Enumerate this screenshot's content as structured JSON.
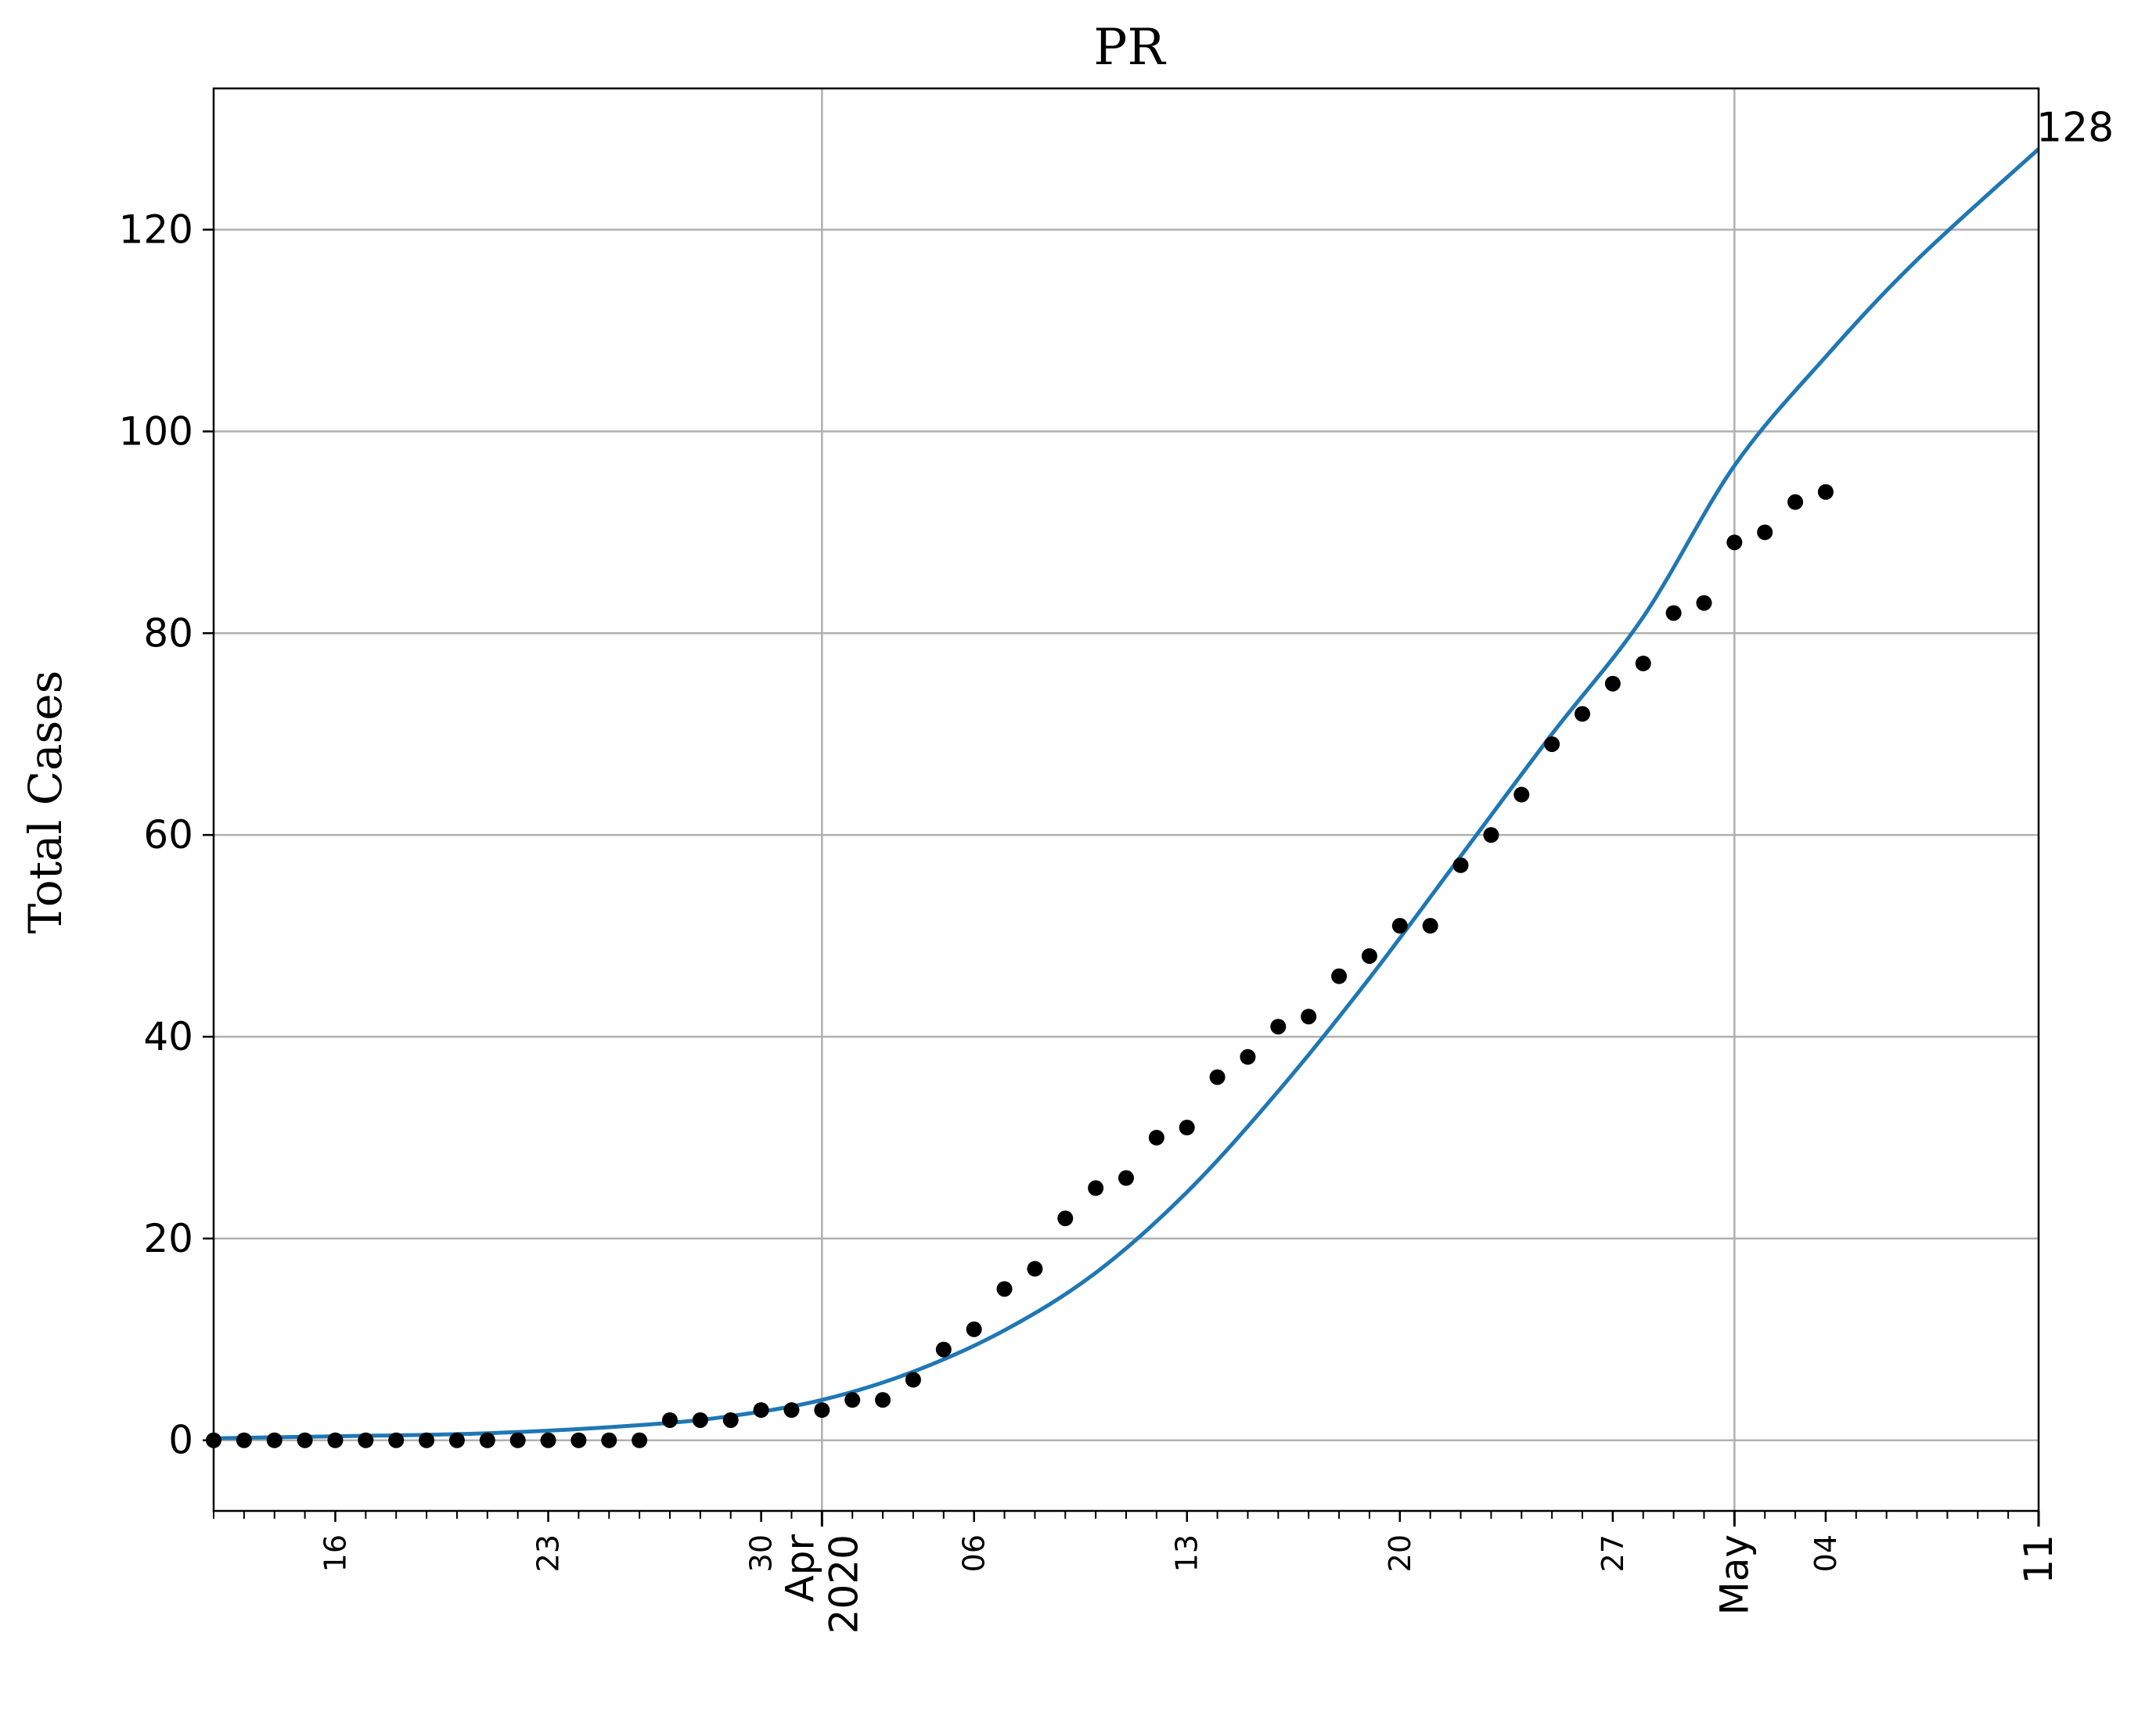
{
  "chart_data": {
    "type": "scatter",
    "title": "PR",
    "ylabel": "Total Cases",
    "xlabel": "",
    "ylim": [
      -7,
      134
    ],
    "xlim": [
      "2020-03-12",
      "2020-05-11"
    ],
    "grid": true,
    "y_ticks": [
      0,
      20,
      40,
      60,
      80,
      100,
      120
    ],
    "x_minor_tick_labels": [
      {
        "date": "2020-03-16",
        "label": "16"
      },
      {
        "date": "2020-03-23",
        "label": "23"
      },
      {
        "date": "2020-03-30",
        "label": "30"
      },
      {
        "date": "2020-04-06",
        "label": "06"
      },
      {
        "date": "2020-04-13",
        "label": "13"
      },
      {
        "date": "2020-04-20",
        "label": "20"
      },
      {
        "date": "2020-04-27",
        "label": "27"
      },
      {
        "date": "2020-05-04",
        "label": "04"
      }
    ],
    "x_major_tick_labels": [
      {
        "date": "2020-04-01",
        "label": "Apr\n2020"
      },
      {
        "date": "2020-05-01",
        "label": "May"
      },
      {
        "date": "2020-05-11",
        "label": "11"
      }
    ],
    "end_label": "128",
    "series": [
      {
        "kind": "points",
        "color": "#000000",
        "points": [
          [
            "2020-03-12",
            0
          ],
          [
            "2020-03-13",
            0
          ],
          [
            "2020-03-14",
            0
          ],
          [
            "2020-03-15",
            0
          ],
          [
            "2020-03-16",
            0
          ],
          [
            "2020-03-17",
            0
          ],
          [
            "2020-03-18",
            0
          ],
          [
            "2020-03-19",
            0
          ],
          [
            "2020-03-20",
            0
          ],
          [
            "2020-03-21",
            0
          ],
          [
            "2020-03-22",
            0
          ],
          [
            "2020-03-23",
            0
          ],
          [
            "2020-03-24",
            0
          ],
          [
            "2020-03-25",
            0
          ],
          [
            "2020-03-26",
            0
          ],
          [
            "2020-03-27",
            2
          ],
          [
            "2020-03-28",
            2
          ],
          [
            "2020-03-29",
            2
          ],
          [
            "2020-03-30",
            3
          ],
          [
            "2020-03-31",
            3
          ],
          [
            "2020-04-01",
            3
          ],
          [
            "2020-04-02",
            4
          ],
          [
            "2020-04-03",
            4
          ],
          [
            "2020-04-04",
            6
          ],
          [
            "2020-04-05",
            9
          ],
          [
            "2020-04-06",
            11
          ],
          [
            "2020-04-07",
            15
          ],
          [
            "2020-04-08",
            17
          ],
          [
            "2020-04-09",
            22
          ],
          [
            "2020-04-10",
            25
          ],
          [
            "2020-04-11",
            26
          ],
          [
            "2020-04-12",
            30
          ],
          [
            "2020-04-13",
            31
          ],
          [
            "2020-04-14",
            36
          ],
          [
            "2020-04-15",
            38
          ],
          [
            "2020-04-16",
            41
          ],
          [
            "2020-04-17",
            42
          ],
          [
            "2020-04-18",
            46
          ],
          [
            "2020-04-19",
            48
          ],
          [
            "2020-04-20",
            51
          ],
          [
            "2020-04-21",
            51
          ],
          [
            "2020-04-22",
            57
          ],
          [
            "2020-04-23",
            60
          ],
          [
            "2020-04-24",
            64
          ],
          [
            "2020-04-25",
            69
          ],
          [
            "2020-04-26",
            72
          ],
          [
            "2020-04-27",
            75
          ],
          [
            "2020-04-28",
            77
          ],
          [
            "2020-04-29",
            82
          ],
          [
            "2020-04-30",
            83
          ],
          [
            "2020-05-01",
            89
          ],
          [
            "2020-05-02",
            90
          ],
          [
            "2020-05-03",
            93
          ],
          [
            "2020-05-04",
            94
          ]
        ]
      },
      {
        "kind": "line",
        "color": "#1f77b4",
        "points": [
          [
            "2020-03-12",
            0.2
          ],
          [
            "2020-03-16",
            0.4
          ],
          [
            "2020-03-21",
            0.7
          ],
          [
            "2020-03-26",
            1.5
          ],
          [
            "2020-03-29",
            2.4
          ],
          [
            "2020-04-01",
            4.0
          ],
          [
            "2020-04-04",
            6.8
          ],
          [
            "2020-04-07",
            10.9
          ],
          [
            "2020-04-10",
            16.6
          ],
          [
            "2020-04-13",
            24.6
          ],
          [
            "2020-04-16",
            34.6
          ],
          [
            "2020-04-19",
            45.8
          ],
          [
            "2020-04-22",
            57.9
          ],
          [
            "2020-04-25",
            70.0
          ],
          [
            "2020-04-28",
            81.6
          ],
          [
            "2020-05-01",
            96.6
          ],
          [
            "2020-05-04",
            107.4
          ],
          [
            "2020-05-07",
            117.0
          ],
          [
            "2020-05-11",
            128.0
          ]
        ]
      }
    ]
  }
}
